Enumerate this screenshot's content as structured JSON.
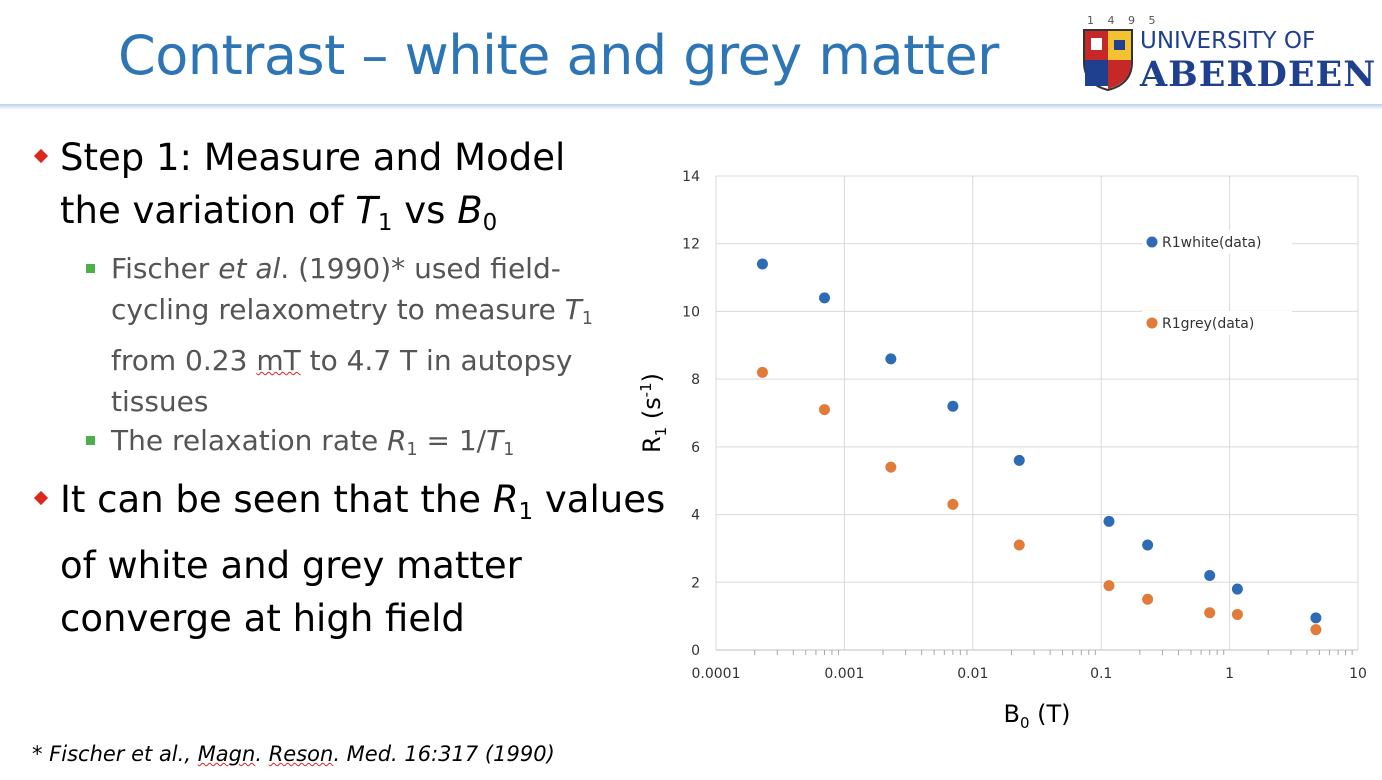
{
  "slide": {
    "title": "Contrast – white and grey matter",
    "logo": {
      "year": "1 4 9 5",
      "line1": "UNIVERSITY OF",
      "line2": "ABERDEEN"
    },
    "bullets": {
      "b1_line1": "Step 1: Measure and Model",
      "b1_line2_pre": "the variation of ",
      "b1_T": "T",
      "b1_T_sub": "1",
      "b1_vs": " vs ",
      "b1_B": "B",
      "b1_B_sub": "0",
      "s1_line1_a": "Fischer ",
      "s1_line1_etal": "et al",
      "s1_line1_b": ". (1990)* used field-",
      "s1_line2_a": "cycling relaxometry to measure ",
      "s1_line2_T": "T",
      "s1_line2_sub": "1",
      "s1_line3_a": "from 0.23 ",
      "s1_line3_mT": "mT",
      "s1_line3_b": " to 4.7 T in autopsy",
      "s1_line4": "tissues",
      "s2_a": "The relaxation rate ",
      "s2_R": "R",
      "s2_R_sub": "1",
      "s2_b": " = 1/",
      "s2_T": "T",
      "s2_T_sub": "1",
      "b2_line1_a": "It can be seen that the ",
      "b2_line1_R": "R",
      "b2_line1_sub": "1",
      "b2_line1_b": " values",
      "b2_line2": "of white and grey matter",
      "b2_line3": "converge at high field"
    },
    "footnote": {
      "a": "* Fischer et al., ",
      "magn": "Magn",
      "dot1": ". ",
      "reson": "Reson",
      "b": ". Med. 16:317 (1990)"
    }
  },
  "chart_data": {
    "type": "scatter",
    "x_scale": "log",
    "xlim": [
      0.0001,
      10
    ],
    "ylim": [
      0,
      14
    ],
    "x_ticks": [
      "0.0001",
      "0.001",
      "0.01",
      "0.1",
      "1",
      "10"
    ],
    "y_ticks": [
      "0",
      "2",
      "4",
      "6",
      "8",
      "10",
      "12",
      "14"
    ],
    "xlabel": {
      "main": "B",
      "sub": "0",
      "tail": " (T)"
    },
    "ylabel": {
      "main": "R",
      "sub": "1",
      "mid": " (s",
      "sup": "-1",
      "tail": ")"
    },
    "grid": true,
    "legend_position": "top-right",
    "series": [
      {
        "name": "R1white(data)",
        "color": "#2e6bb5",
        "x": [
          0.00023,
          0.0007,
          0.0023,
          0.007,
          0.023,
          0.115,
          0.23,
          0.7,
          1.15,
          4.7
        ],
        "y": [
          11.4,
          10.4,
          8.6,
          7.2,
          5.6,
          3.8,
          3.1,
          2.2,
          1.8,
          0.95
        ]
      },
      {
        "name": "R1grey(data)",
        "color": "#e07b39",
        "x": [
          0.00023,
          0.0007,
          0.0023,
          0.007,
          0.023,
          0.115,
          0.23,
          0.7,
          1.15,
          4.7
        ],
        "y": [
          8.2,
          7.1,
          5.4,
          4.3,
          3.1,
          1.9,
          1.5,
          1.1,
          1.05,
          0.6
        ]
      }
    ]
  }
}
